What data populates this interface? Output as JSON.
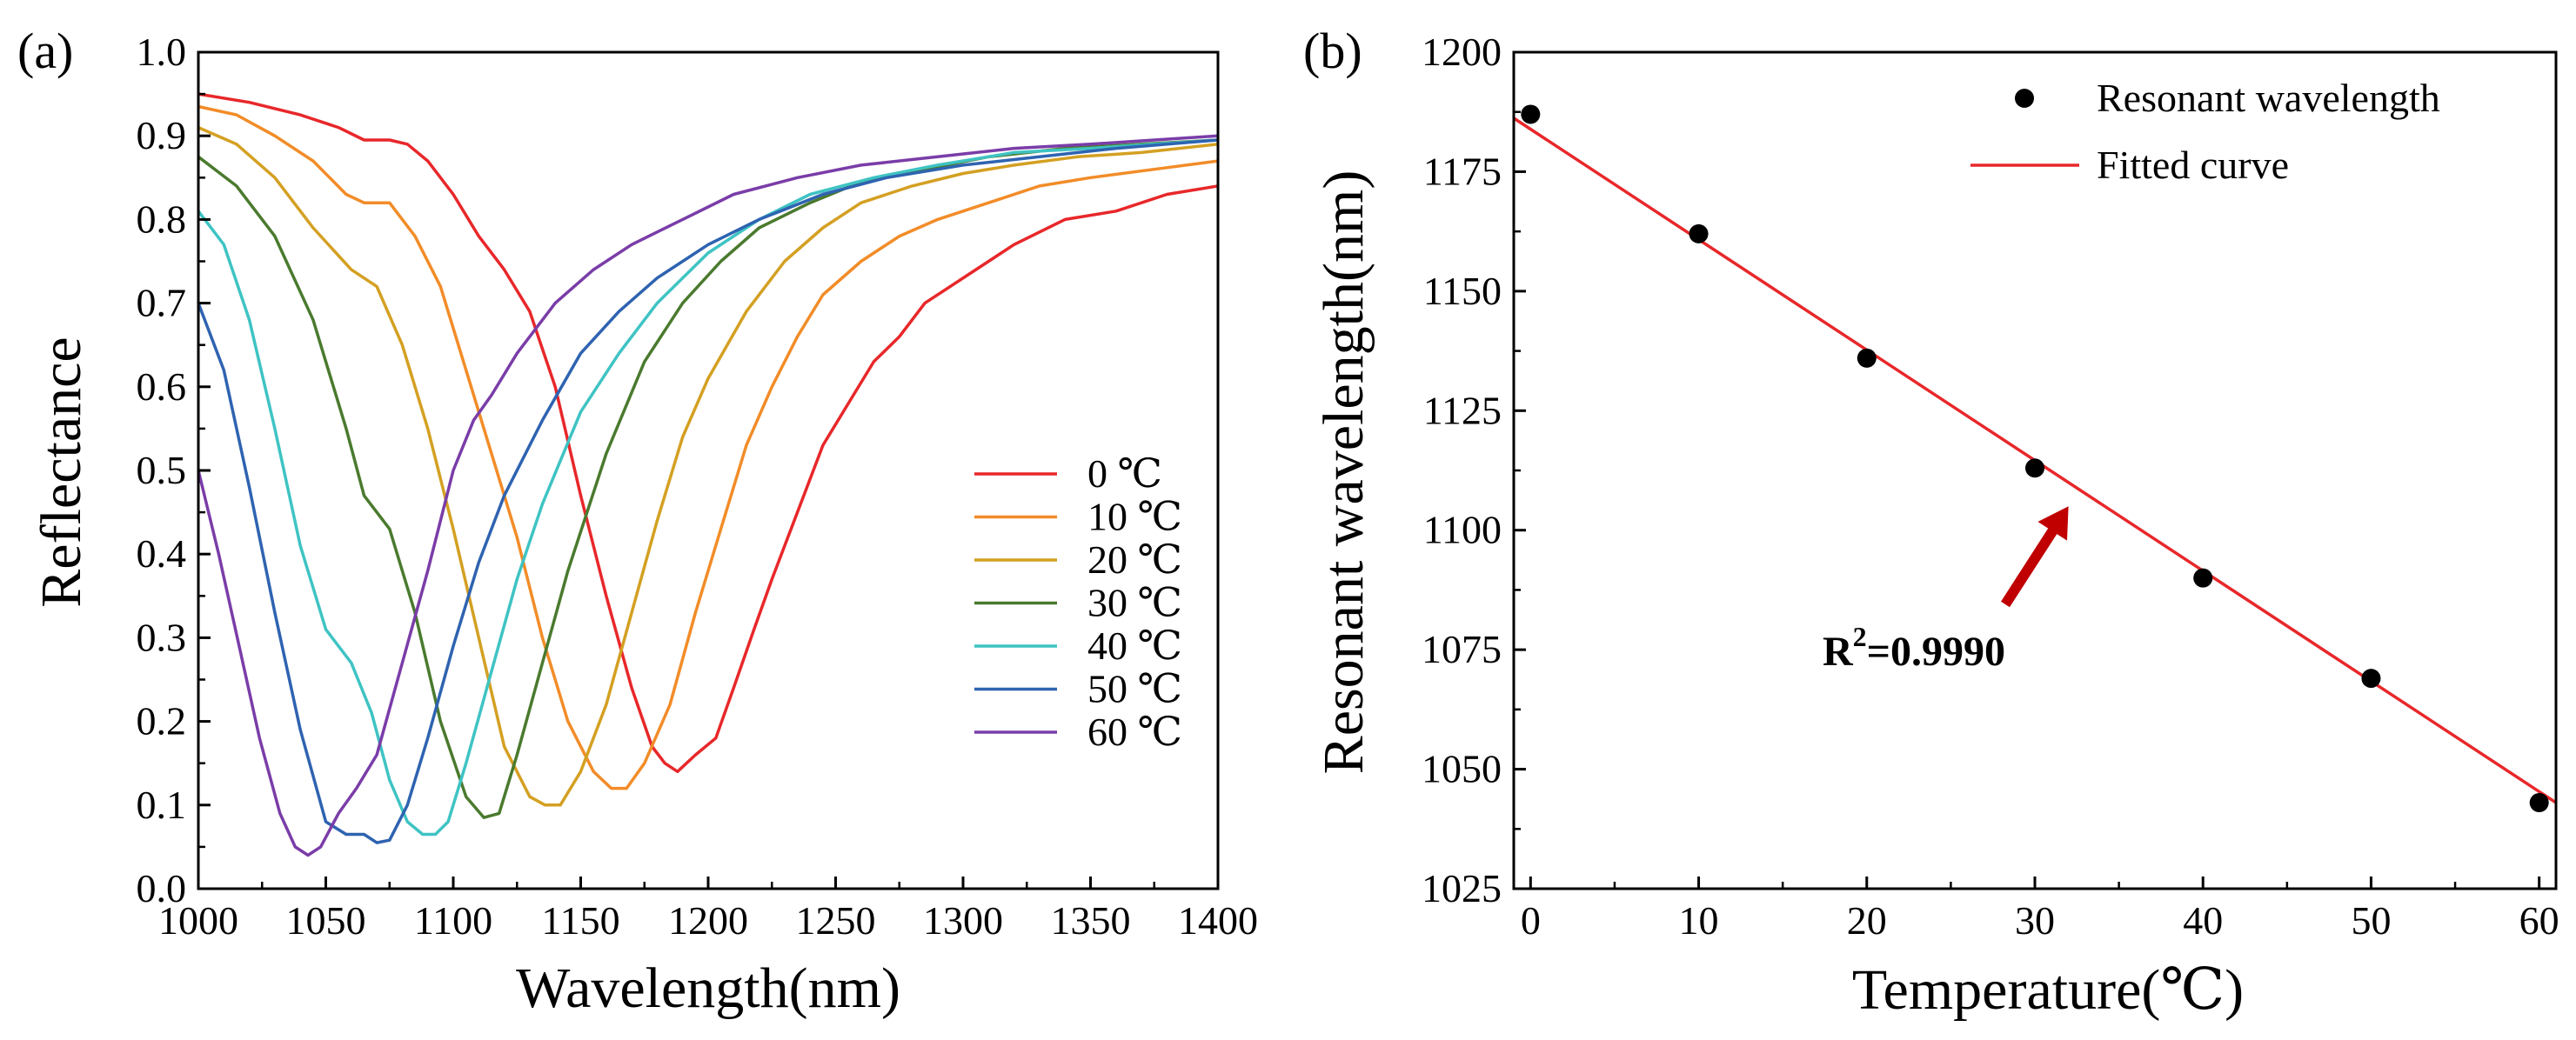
{
  "chart_data": [
    {
      "panel_label": "(a)",
      "type": "line",
      "xlabel": "Wavelength(nm)",
      "ylabel": "Reflectance",
      "xlim": [
        1000,
        1400
      ],
      "ylim": [
        0.0,
        1.0
      ],
      "xticks": [
        "1000",
        "1050",
        "1100",
        "1150",
        "1200",
        "1250",
        "1300",
        "1350",
        "1400"
      ],
      "yticks": [
        "0.0",
        "0.1",
        "0.2",
        "0.3",
        "0.4",
        "0.5",
        "0.6",
        "0.7",
        "0.8",
        "0.9",
        "1.0"
      ],
      "grid": false,
      "legend_position": "right",
      "series": [
        {
          "name": "0 ℃",
          "color": "#e8272a",
          "x": [
            1000,
            1020,
            1040,
            1055,
            1065,
            1075,
            1082,
            1090,
            1100,
            1110,
            1120,
            1130,
            1140,
            1150,
            1160,
            1170,
            1178,
            1183,
            1188,
            1195,
            1203,
            1210,
            1218,
            1225,
            1235,
            1245,
            1255,
            1265,
            1275,
            1285,
            1295,
            1305,
            1320,
            1340,
            1360,
            1380,
            1400
          ],
          "y": [
            0.95,
            0.94,
            0.925,
            0.91,
            0.895,
            0.895,
            0.89,
            0.87,
            0.83,
            0.78,
            0.74,
            0.69,
            0.6,
            0.47,
            0.35,
            0.24,
            0.17,
            0.15,
            0.14,
            0.16,
            0.18,
            0.24,
            0.31,
            0.37,
            0.45,
            0.53,
            0.58,
            0.63,
            0.66,
            0.7,
            0.72,
            0.74,
            0.77,
            0.8,
            0.81,
            0.83,
            0.84
          ]
        },
        {
          "name": "10 ℃",
          "color": "#f28c28",
          "x": [
            1000,
            1015,
            1030,
            1045,
            1058,
            1065,
            1075,
            1085,
            1095,
            1105,
            1115,
            1125,
            1135,
            1145,
            1155,
            1162,
            1168,
            1175,
            1185,
            1195,
            1205,
            1215,
            1225,
            1235,
            1245,
            1260,
            1275,
            1290,
            1310,
            1330,
            1350,
            1375,
            1400
          ],
          "y": [
            0.935,
            0.925,
            0.9,
            0.87,
            0.83,
            0.82,
            0.82,
            0.78,
            0.72,
            0.62,
            0.52,
            0.42,
            0.3,
            0.2,
            0.14,
            0.12,
            0.12,
            0.15,
            0.22,
            0.33,
            0.43,
            0.53,
            0.6,
            0.66,
            0.71,
            0.75,
            0.78,
            0.8,
            0.82,
            0.84,
            0.85,
            0.86,
            0.87
          ]
        },
        {
          "name": "20 ℃",
          "color": "#d4a022",
          "x": [
            1000,
            1015,
            1030,
            1045,
            1060,
            1070,
            1080,
            1090,
            1100,
            1110,
            1120,
            1130,
            1136,
            1142,
            1150,
            1160,
            1170,
            1180,
            1190,
            1200,
            1215,
            1230,
            1245,
            1260,
            1280,
            1300,
            1320,
            1345,
            1370,
            1400
          ],
          "y": [
            0.91,
            0.89,
            0.85,
            0.79,
            0.74,
            0.72,
            0.65,
            0.55,
            0.43,
            0.3,
            0.17,
            0.11,
            0.1,
            0.1,
            0.14,
            0.22,
            0.33,
            0.44,
            0.54,
            0.61,
            0.69,
            0.75,
            0.79,
            0.82,
            0.84,
            0.855,
            0.865,
            0.875,
            0.88,
            0.89
          ]
        },
        {
          "name": "30 ℃",
          "color": "#4a7a2e",
          "x": [
            1000,
            1015,
            1030,
            1045,
            1058,
            1065,
            1075,
            1085,
            1095,
            1105,
            1112,
            1118,
            1125,
            1135,
            1145,
            1160,
            1175,
            1190,
            1205,
            1220,
            1240,
            1260,
            1285,
            1310,
            1340,
            1370,
            1400
          ],
          "y": [
            0.875,
            0.84,
            0.78,
            0.68,
            0.55,
            0.47,
            0.43,
            0.33,
            0.2,
            0.11,
            0.085,
            0.09,
            0.16,
            0.27,
            0.38,
            0.52,
            0.63,
            0.7,
            0.75,
            0.79,
            0.82,
            0.845,
            0.86,
            0.875,
            0.885,
            0.89,
            0.895
          ]
        },
        {
          "name": "40 ℃",
          "color": "#3fc3c3",
          "x": [
            1000,
            1010,
            1020,
            1030,
            1040,
            1050,
            1060,
            1068,
            1075,
            1082,
            1088,
            1093,
            1098,
            1105,
            1115,
            1125,
            1135,
            1150,
            1165,
            1180,
            1200,
            1220,
            1240,
            1265,
            1290,
            1320,
            1350,
            1375,
            1400
          ],
          "y": [
            0.81,
            0.77,
            0.68,
            0.55,
            0.41,
            0.31,
            0.27,
            0.21,
            0.13,
            0.08,
            0.065,
            0.065,
            0.08,
            0.15,
            0.26,
            0.37,
            0.46,
            0.57,
            0.64,
            0.7,
            0.76,
            0.8,
            0.83,
            0.85,
            0.865,
            0.88,
            0.885,
            0.89,
            0.895
          ]
        },
        {
          "name": "50 ℃",
          "color": "#2e63b0",
          "x": [
            1000,
            1010,
            1020,
            1030,
            1040,
            1050,
            1058,
            1065,
            1070,
            1075,
            1082,
            1090,
            1100,
            1110,
            1120,
            1135,
            1150,
            1165,
            1180,
            1200,
            1220,
            1245,
            1270,
            1300,
            1330,
            1360,
            1400
          ],
          "y": [
            0.7,
            0.62,
            0.48,
            0.33,
            0.19,
            0.08,
            0.065,
            0.065,
            0.055,
            0.058,
            0.1,
            0.18,
            0.29,
            0.39,
            0.47,
            0.56,
            0.64,
            0.69,
            0.73,
            0.77,
            0.8,
            0.83,
            0.85,
            0.865,
            0.875,
            0.885,
            0.895
          ]
        },
        {
          "name": "60 ℃",
          "color": "#7a3da8",
          "x": [
            1000,
            1008,
            1016,
            1024,
            1032,
            1038,
            1043,
            1048,
            1055,
            1062,
            1070,
            1080,
            1090,
            1100,
            1108,
            1115,
            1125,
            1140,
            1155,
            1170,
            1190,
            1210,
            1235,
            1260,
            1290,
            1320,
            1350,
            1375,
            1400
          ],
          "y": [
            0.5,
            0.4,
            0.29,
            0.18,
            0.09,
            0.05,
            0.04,
            0.05,
            0.09,
            0.12,
            0.16,
            0.27,
            0.38,
            0.5,
            0.56,
            0.59,
            0.64,
            0.7,
            0.74,
            0.77,
            0.8,
            0.83,
            0.85,
            0.865,
            0.875,
            0.885,
            0.89,
            0.895,
            0.9
          ]
        }
      ]
    },
    {
      "panel_label": "(b)",
      "type": "scatter",
      "xlabel": "Temperature(℃)",
      "ylabel": "Resonant wavelength(nm)",
      "xlim": [
        -1,
        61
      ],
      "ylim": [
        1025,
        1200
      ],
      "xticks": [
        "0",
        "10",
        "20",
        "30",
        "40",
        "50",
        "60"
      ],
      "yticks": [
        "1025",
        "1050",
        "1075",
        "1100",
        "1125",
        "1150",
        "1175",
        "1200"
      ],
      "grid": false,
      "legend_position": "top-right",
      "series": [
        {
          "name": "Resonant wavelength",
          "kind": "scatter",
          "color": "#000000",
          "x": [
            0,
            10,
            20,
            30,
            40,
            50,
            60
          ],
          "y": [
            1187,
            1162,
            1136,
            1113,
            1090,
            1069,
            1043
          ]
        },
        {
          "name": "Fitted curve",
          "kind": "line",
          "color": "#e8272a",
          "x": [
            -1,
            61
          ],
          "y": [
            1186.2,
            1043
          ]
        }
      ],
      "annotation": {
        "text_base": "R",
        "text_sup": "2",
        "text_rest": "=0.9990",
        "arrow_color": "#c00000",
        "arrow_to": [
          32,
          1105
        ]
      }
    }
  ]
}
